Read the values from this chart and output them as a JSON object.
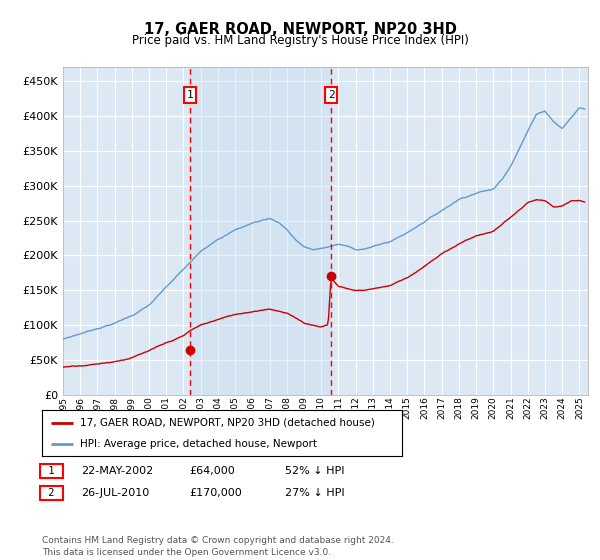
{
  "title": "17, GAER ROAD, NEWPORT, NP20 3HD",
  "subtitle": "Price paid vs. HM Land Registry's House Price Index (HPI)",
  "x_start": 1995.0,
  "x_end": 2025.5,
  "y_min": 0,
  "y_max": 470000,
  "y_ticks": [
    0,
    50000,
    100000,
    150000,
    200000,
    250000,
    300000,
    350000,
    400000,
    450000
  ],
  "y_tick_labels": [
    "£0",
    "£50K",
    "£100K",
    "£150K",
    "£200K",
    "£250K",
    "£300K",
    "£350K",
    "£400K",
    "£450K"
  ],
  "x_tick_years": [
    1995,
    1996,
    1997,
    1998,
    1999,
    2000,
    2001,
    2002,
    2003,
    2004,
    2005,
    2006,
    2007,
    2008,
    2009,
    2010,
    2011,
    2012,
    2013,
    2014,
    2015,
    2016,
    2017,
    2018,
    2019,
    2020,
    2021,
    2022,
    2023,
    2024,
    2025
  ],
  "background_color": "#dce9f5",
  "figure_bg_color": "#ffffff",
  "grid_color": "#ffffff",
  "shade_color": "#c5d9ef",
  "red_line_color": "#cc0000",
  "blue_line_color": "#6699cc",
  "sale1_x": 2002.38,
  "sale1_y": 64000,
  "sale2_x": 2010.57,
  "sale2_y": 170000,
  "legend_label_red": "17, GAER ROAD, NEWPORT, NP20 3HD (detached house)",
  "legend_label_blue": "HPI: Average price, detached house, Newport",
  "annotation1_date": "22-MAY-2002",
  "annotation1_price": "£64,000",
  "annotation1_hpi": "52% ↓ HPI",
  "annotation2_date": "26-JUL-2010",
  "annotation2_price": "£170,000",
  "annotation2_hpi": "27% ↓ HPI",
  "footer": "Contains HM Land Registry data © Crown copyright and database right 2024.\nThis data is licensed under the Open Government Licence v3.0."
}
